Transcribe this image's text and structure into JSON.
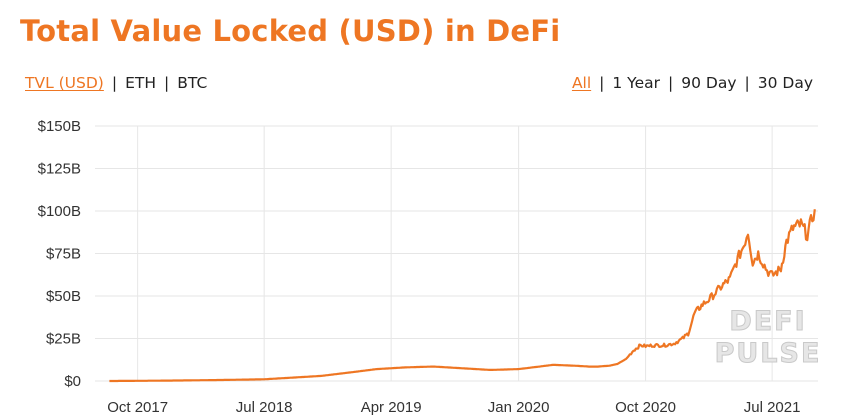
{
  "title": "Total Value Locked (USD) in DeFi",
  "currency_toggles": [
    {
      "label": "TVL (USD)",
      "active": true
    },
    {
      "label": "ETH",
      "active": false
    },
    {
      "label": "BTC",
      "active": false
    }
  ],
  "range_toggles": [
    {
      "label": "All",
      "active": true
    },
    {
      "label": "1 Year",
      "active": false
    },
    {
      "label": "90 Day",
      "active": false
    },
    {
      "label": "30 Day",
      "active": false
    }
  ],
  "watermark": [
    "DEFI",
    "PULSE"
  ],
  "colors": {
    "accent": "#ee7623",
    "line": "#ee7623",
    "grid": "#e6e6e6",
    "text": "#222222"
  },
  "chart_data": {
    "type": "line",
    "title": "Total Value Locked (USD) in DeFi",
    "xlabel": "",
    "ylabel": "",
    "x_ticks": [
      "Oct 2017",
      "Jul 2018",
      "Apr 2019",
      "Jan 2020",
      "Oct 2020",
      "Jul 2021"
    ],
    "y_ticks": [
      "$0",
      "$25B",
      "$50B",
      "$75B",
      "$100B",
      "$125B",
      "$150B"
    ],
    "ylim": [
      0,
      150
    ],
    "y_unit": "billions USD",
    "grid": true,
    "legend": "none",
    "series": [
      {
        "x": [
          "2017-08-01",
          "2017-10-01",
          "2018-01-01",
          "2018-04-01",
          "2018-07-01",
          "2018-09-01",
          "2018-11-01",
          "2019-01-01",
          "2019-03-01",
          "2019-05-01",
          "2019-07-01",
          "2019-09-01",
          "2019-11-01",
          "2020-01-01",
          "2020-02-15",
          "2020-03-15",
          "2020-05-01",
          "2020-06-01",
          "2020-06-20",
          "2020-07-15",
          "2020-08-01",
          "2020-08-20",
          "2020-09-05",
          "2020-09-20",
          "2020-10-01",
          "2020-10-20",
          "2020-11-10",
          "2020-12-01",
          "2020-12-20",
          "2021-01-01",
          "2021-01-15",
          "2021-02-01",
          "2021-02-15",
          "2021-03-01",
          "2021-03-15",
          "2021-04-01",
          "2021-04-15",
          "2021-05-01",
          "2021-05-10",
          "2021-05-20",
          "2021-06-01",
          "2021-06-20",
          "2021-07-01",
          "2021-07-20",
          "2021-08-01",
          "2021-08-15",
          "2021-09-01",
          "2021-09-15",
          "2021-10-01"
        ],
        "y": [
          0.0,
          0.1,
          0.3,
          0.6,
          1.0,
          2.0,
          3.0,
          5.0,
          7.0,
          8.0,
          8.5,
          7.5,
          6.5,
          7.0,
          8.5,
          9.5,
          9.0,
          8.5,
          8.5,
          9.0,
          10.0,
          13.0,
          18.0,
          21.0,
          20.5,
          21.0,
          21.0,
          22.0,
          25.0,
          28.0,
          40.0,
          45.0,
          48.0,
          52.0,
          56.0,
          60.0,
          70.0,
          80.0,
          88.0,
          70.0,
          75.0,
          65.0,
          62.0,
          66.0,
          82.0,
          90.0,
          92.0,
          86.0,
          101.0
        ]
      }
    ]
  }
}
